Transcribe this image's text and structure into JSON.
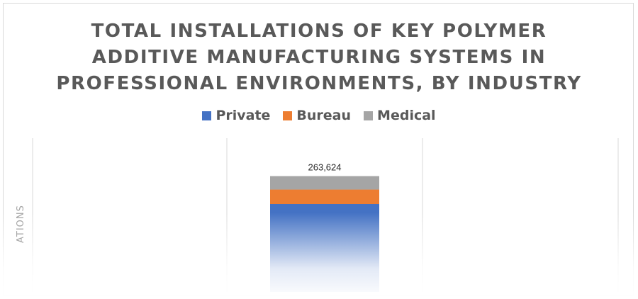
{
  "title_lines": [
    "TOTAL INSTALLATIONS OF KEY POLYMER",
    "ADDITIVE MANUFACTURING SYSTEMS IN",
    "PROFESSIONAL ENVIRONMENTS, BY INDUSTRY"
  ],
  "legend": [
    {
      "label": "Private",
      "color": "#4472c4"
    },
    {
      "label": "Bureau",
      "color": "#ed7d31"
    },
    {
      "label": "Medical",
      "color": "#a5a5a5"
    }
  ],
  "chart_data": {
    "type": "bar",
    "stacked": true,
    "title": "TOTAL INSTALLATIONS OF KEY POLYMER ADDITIVE MANUFACTURING SYSTEMS IN PROFESSIONAL ENVIRONMENTS, BY INDUSTRY",
    "ylabel": "ATIONS",
    "categories": [
      ""
    ],
    "series": [
      {
        "name": "Private",
        "values": [
          200000
        ],
        "color": "#4472c4"
      },
      {
        "name": "Bureau",
        "values": [
          33000
        ],
        "color": "#ed7d31"
      },
      {
        "name": "Medical",
        "values": [
          30624
        ],
        "color": "#a5a5a5"
      }
    ],
    "total_labels": [
      "263,624"
    ],
    "ylim": [
      0,
      350000
    ],
    "legend_position": "top",
    "grid": "vertical"
  }
}
